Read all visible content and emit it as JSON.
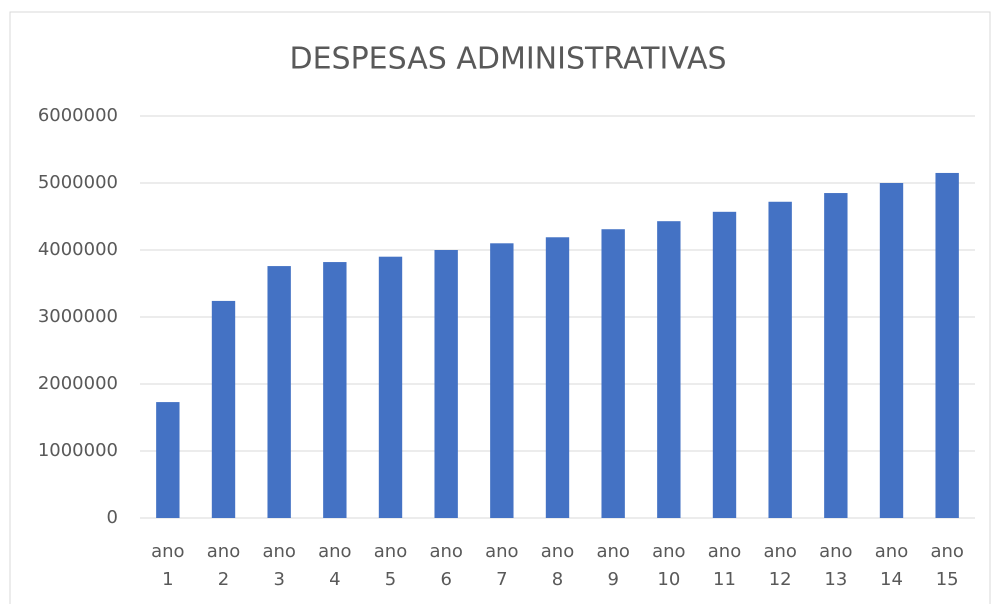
{
  "chart_data": {
    "type": "bar",
    "title": "DESPESAS ADMINISTRATIVAS",
    "categories": [
      "ano 1",
      "ano 2",
      "ano 3",
      "ano 4",
      "ano 5",
      "ano 6",
      "ano 7",
      "ano 8",
      "ano 9",
      "ano 10",
      "ano 11",
      "ano 12",
      "ano 13",
      "ano 14",
      "ano 15"
    ],
    "values": [
      1730000,
      3240000,
      3760000,
      3820000,
      3900000,
      4000000,
      4100000,
      4190000,
      4310000,
      4430000,
      4570000,
      4720000,
      4850000,
      5000000,
      5150000
    ],
    "color": "#4472c4",
    "ylim": [
      0,
      6000000
    ],
    "yticks": [
      0,
      1000000,
      2000000,
      3000000,
      4000000,
      5000000,
      6000000
    ],
    "grid": true
  }
}
